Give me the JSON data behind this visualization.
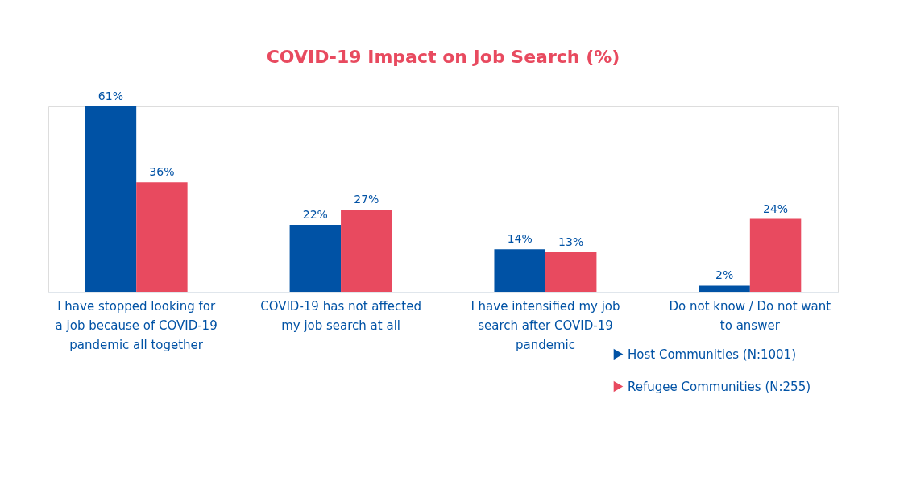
{
  "chart_data": {
    "type": "bar",
    "title": "COVID-19 Impact on Job Search (%)",
    "categories": [
      "I have stopped looking for a job because of COVID-19 pandemic all together",
      "COVID-19 has not affected my job search at all",
      "I have intensified my job search after COVID-19 pandemic",
      "Do not know / Do not want to answer"
    ],
    "series": [
      {
        "name": "Host Communities (N:1001)",
        "color": "#0052a5",
        "values": [
          61,
          22,
          14,
          2
        ],
        "value_labels": [
          "61%",
          "22%",
          "14%",
          "2%"
        ]
      },
      {
        "name": "Refugee Communities (N:255)",
        "color": "#e84a5f",
        "values": [
          36,
          27,
          13,
          24
        ],
        "value_labels": [
          "36%",
          "27%",
          "13%",
          "24%"
        ]
      }
    ],
    "legend": "bottom right",
    "grid": false
  }
}
